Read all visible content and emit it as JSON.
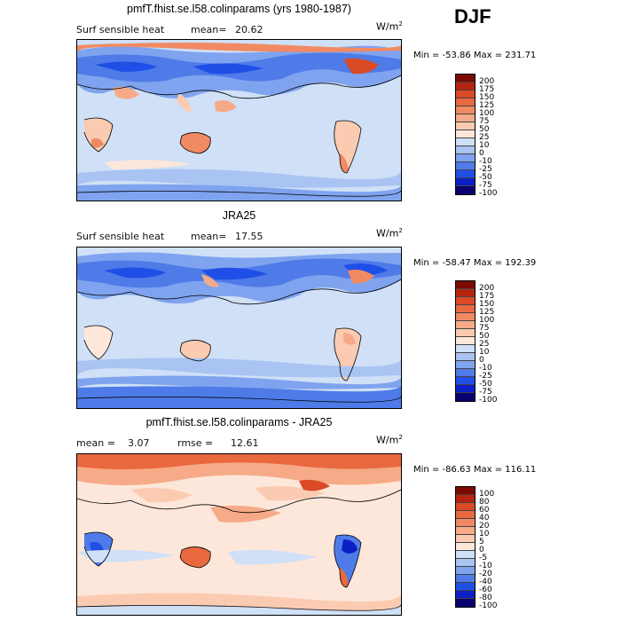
{
  "season": "DJF",
  "colors": {
    "abs": [
      "#08006f",
      "#0b1fc4",
      "#1f4fe6",
      "#4f7be9",
      "#7fa3ee",
      "#a9c4f2",
      "#cfe0f7",
      "#fde7da",
      "#fbcbb1",
      "#f6aa87",
      "#f18a63",
      "#e9693f",
      "#d94a25",
      "#b52410",
      "#7d0a02"
    ],
    "diff": [
      "#08006f",
      "#0b1fc4",
      "#1f4fe6",
      "#4f7be9",
      "#7fa3ee",
      "#a9c4f2",
      "#cfe0f7",
      "#fde7da",
      "#fbcbb1",
      "#f6aa87",
      "#f18a63",
      "#e9693f",
      "#d94a25",
      "#b52410",
      "#7d0a02"
    ]
  },
  "panels": [
    {
      "title": "pmfT.fhist.se.l58.colinparams (yrs 1980-1987)",
      "field": "Surf sensible heat",
      "stat1_label": "mean=",
      "stat1_value": "20.62",
      "stat2_label": "",
      "stat2_value": "",
      "units_base": "W/m",
      "units_exp": "2",
      "minmax": "Min = -53.86 Max = 231.71",
      "levels": [
        "200",
        "175",
        "150",
        "125",
        "100",
        "75",
        "50",
        "25",
        "10",
        "0",
        "-10",
        "-25",
        "-50",
        "-75",
        "-100"
      ]
    },
    {
      "title": "JRA25",
      "field": "Surf sensible heat",
      "stat1_label": "mean=",
      "stat1_value": "17.55",
      "stat2_label": "",
      "stat2_value": "",
      "units_base": "W/m",
      "units_exp": "2",
      "minmax": "Min = -58.47 Max = 192.39",
      "levels": [
        "200",
        "175",
        "150",
        "125",
        "100",
        "75",
        "50",
        "25",
        "10",
        "0",
        "-10",
        "-25",
        "-50",
        "-75",
        "-100"
      ]
    },
    {
      "title": "pmfT.fhist.se.l58.colinparams - JRA25",
      "field": "",
      "stat1_label": "mean =",
      "stat1_value": "3.07",
      "stat2_label": "rmse =",
      "stat2_value": "12.61",
      "units_base": "W/m",
      "units_exp": "2",
      "minmax": "Min = -86.63 Max = 116.11",
      "levels": [
        "100",
        "80",
        "60",
        "40",
        "20",
        "10",
        "5",
        "0",
        "-5",
        "-10",
        "-20",
        "-40",
        "-60",
        "-80",
        "-100"
      ]
    }
  ]
}
